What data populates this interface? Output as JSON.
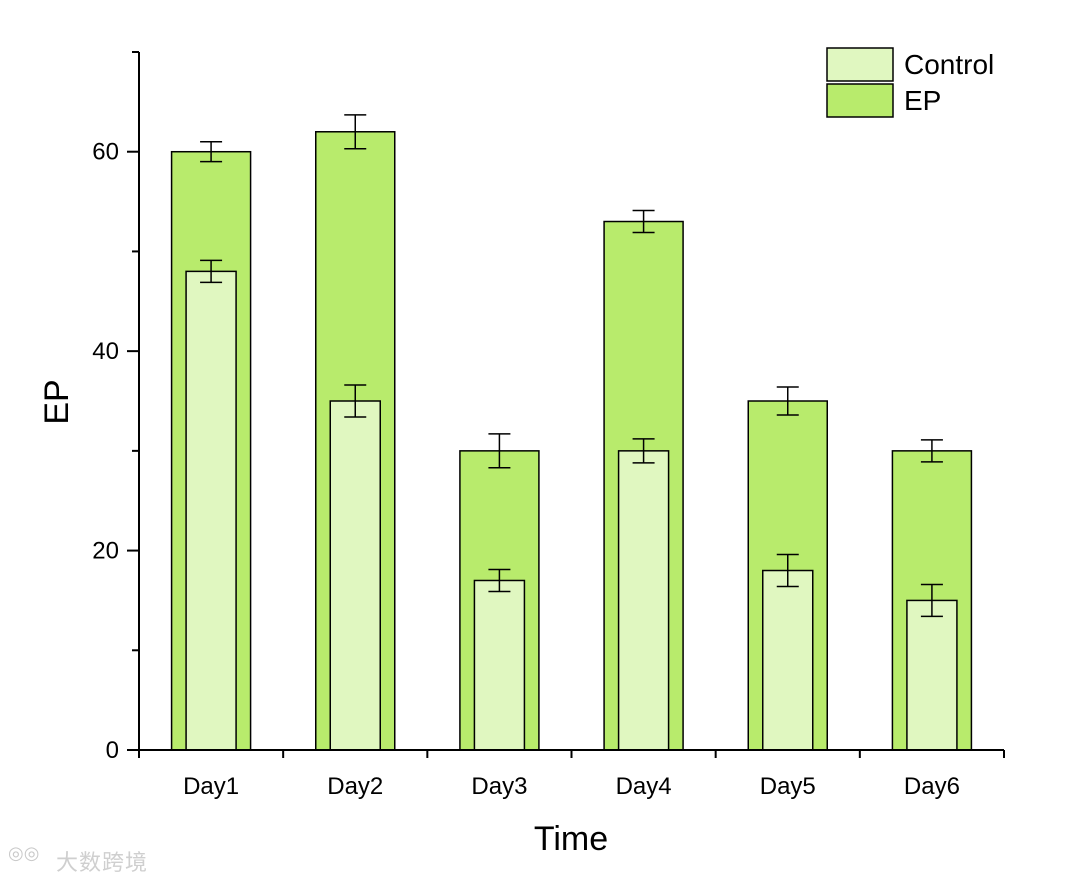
{
  "chart_data": {
    "type": "bar",
    "xlabel": "Time",
    "ylabel": "EP",
    "ylim": [
      0,
      70
    ],
    "yticks": [
      0,
      20,
      40,
      60
    ],
    "categories": [
      "Day1",
      "Day2",
      "Day3",
      "Day4",
      "Day5",
      "Day6"
    ],
    "series": [
      {
        "name": "Control",
        "color": "#e0f7c0",
        "values": [
          48,
          35,
          17,
          30,
          18,
          15
        ],
        "errors": [
          1.1,
          1.6,
          1.1,
          1.2,
          1.6,
          1.6
        ]
      },
      {
        "name": "EP",
        "color": "#b8eb6c",
        "values": [
          60,
          62,
          30,
          53,
          35,
          30
        ],
        "errors": [
          1.0,
          1.7,
          1.7,
          1.1,
          1.4,
          1.1
        ]
      }
    ],
    "legend_position": "top-right",
    "grid": false
  },
  "watermark": {
    "icon": "camera-icon",
    "text": "大数跨境"
  }
}
